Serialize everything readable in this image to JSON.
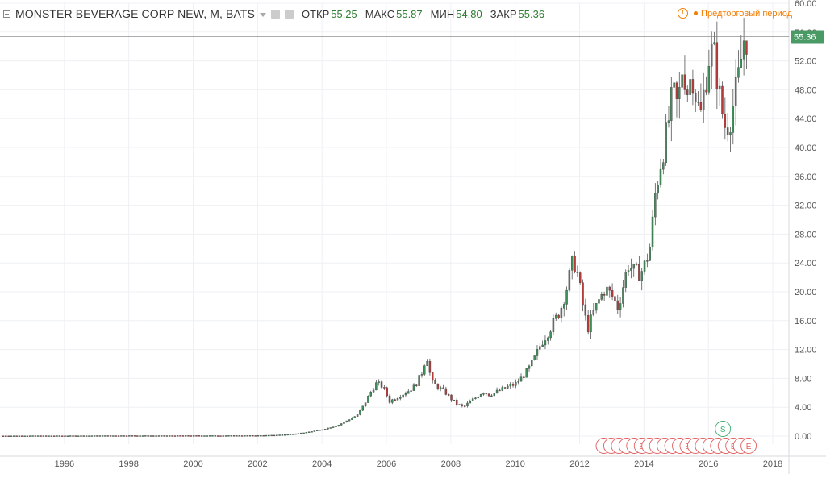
{
  "header": {
    "symbol": "MONSTER BEVERAGE CORP NEW, M, BATS",
    "open_label": "ОТКР",
    "open_value": "55.25",
    "high_label": "МАКС",
    "high_value": "55.87",
    "low_label": "МИН",
    "low_value": "54.80",
    "close_label": "ЗАКР",
    "close_value": "55.36",
    "premarket_text": "Предторговый период",
    "warning_glyph": "!"
  },
  "colors": {
    "up": "#3f8f5a",
    "down": "#b53b3b",
    "price_tag": "#4a9a66",
    "events": "#e06060",
    "split": "#3fae72"
  },
  "chart_data": {
    "type": "candlestick",
    "title": "",
    "xlabel": "",
    "ylabel": "",
    "x_ticks": [
      "1996",
      "1998",
      "2000",
      "2002",
      "2004",
      "2006",
      "2008",
      "2010",
      "2012",
      "2014",
      "2016",
      "2018"
    ],
    "y_ticks": [
      "0.00",
      "4.00",
      "8.00",
      "12.00",
      "16.00",
      "20.00",
      "24.00",
      "28.00",
      "32.00",
      "36.00",
      "40.00",
      "44.00",
      "48.00",
      "52.00",
      "56.00",
      "60.00"
    ],
    "ylim": [
      0,
      60
    ],
    "xlim": [
      1994.5,
      2019.0
    ],
    "grid": true,
    "last_price_label": "55.36",
    "last_price": 55.36,
    "event_markers": {
      "earnings_glyph": "E",
      "split_glyph": "S",
      "split_year": 2016.95,
      "earnings_count": 20,
      "earnings_start": 2013.25,
      "earnings_end": 2017.75
    },
    "series": [
      {
        "values": [
          [
            1994.6,
            0.03
          ],
          [
            1995.5,
            0.04
          ],
          [
            1996.5,
            0.04
          ],
          [
            1997.5,
            0.05
          ],
          [
            1998.5,
            0.06
          ],
          [
            1999.5,
            0.05
          ],
          [
            2000.5,
            0.06
          ],
          [
            2001.5,
            0.06
          ],
          [
            2002.5,
            0.07
          ],
          [
            2003.0,
            0.12
          ],
          [
            2003.5,
            0.25
          ],
          [
            2004.0,
            0.5
          ],
          [
            2004.5,
            0.9
          ],
          [
            2005.0,
            1.5
          ],
          [
            2005.3,
            2.2
          ],
          [
            2005.6,
            2.9
          ],
          [
            2005.8,
            4.3
          ],
          [
            2006.0,
            6.0
          ],
          [
            2006.2,
            7.4
          ],
          [
            2006.4,
            6.8
          ],
          [
            2006.6,
            4.8
          ],
          [
            2006.8,
            5.3
          ],
          [
            2007.0,
            5.8
          ],
          [
            2007.2,
            6.3
          ],
          [
            2007.4,
            7.0
          ],
          [
            2007.6,
            8.8
          ],
          [
            2007.75,
            11.2
          ],
          [
            2007.9,
            7.5
          ],
          [
            2008.1,
            6.8
          ],
          [
            2008.3,
            6.2
          ],
          [
            2008.5,
            5.2
          ],
          [
            2008.7,
            4.4
          ],
          [
            2008.9,
            4.0
          ],
          [
            2009.1,
            4.8
          ],
          [
            2009.3,
            5.4
          ],
          [
            2009.5,
            6.2
          ],
          [
            2009.7,
            5.7
          ],
          [
            2009.9,
            6.1
          ],
          [
            2010.1,
            6.5
          ],
          [
            2010.3,
            6.9
          ],
          [
            2010.5,
            7.2
          ],
          [
            2010.7,
            8.1
          ],
          [
            2010.9,
            9.2
          ],
          [
            2011.1,
            10.8
          ],
          [
            2011.3,
            12.8
          ],
          [
            2011.5,
            14.2
          ],
          [
            2011.7,
            15.8
          ],
          [
            2011.9,
            17.4
          ],
          [
            2012.1,
            20.5
          ],
          [
            2012.3,
            24.5
          ],
          [
            2012.45,
            22.2
          ],
          [
            2012.6,
            18.2
          ],
          [
            2012.75,
            14.8
          ],
          [
            2012.9,
            16.8
          ],
          [
            2013.1,
            18.8
          ],
          [
            2013.3,
            20.5
          ],
          [
            2013.5,
            19.5
          ],
          [
            2013.7,
            17.8
          ],
          [
            2013.85,
            20.8
          ],
          [
            2014.0,
            23.8
          ],
          [
            2014.2,
            22.8
          ],
          [
            2014.4,
            22.6
          ],
          [
            2014.55,
            24.0
          ],
          [
            2014.7,
            26.5
          ],
          [
            2014.85,
            33.5
          ],
          [
            2015.0,
            37.5
          ],
          [
            2015.2,
            42.0
          ],
          [
            2015.4,
            47.5
          ],
          [
            2015.55,
            45.5
          ],
          [
            2015.7,
            51.5
          ],
          [
            2015.85,
            48.0
          ],
          [
            2016.0,
            50.5
          ],
          [
            2016.1,
            47.5
          ],
          [
            2016.25,
            44.0
          ],
          [
            2016.4,
            49.0
          ],
          [
            2016.55,
            53.5
          ],
          [
            2016.7,
            52.5
          ],
          [
            2016.85,
            47.0
          ],
          [
            2017.0,
            43.0
          ],
          [
            2017.15,
            43.5
          ],
          [
            2017.3,
            46.5
          ],
          [
            2017.45,
            50.0
          ],
          [
            2017.6,
            55.0
          ],
          [
            2017.75,
            55.36
          ]
        ]
      }
    ]
  }
}
